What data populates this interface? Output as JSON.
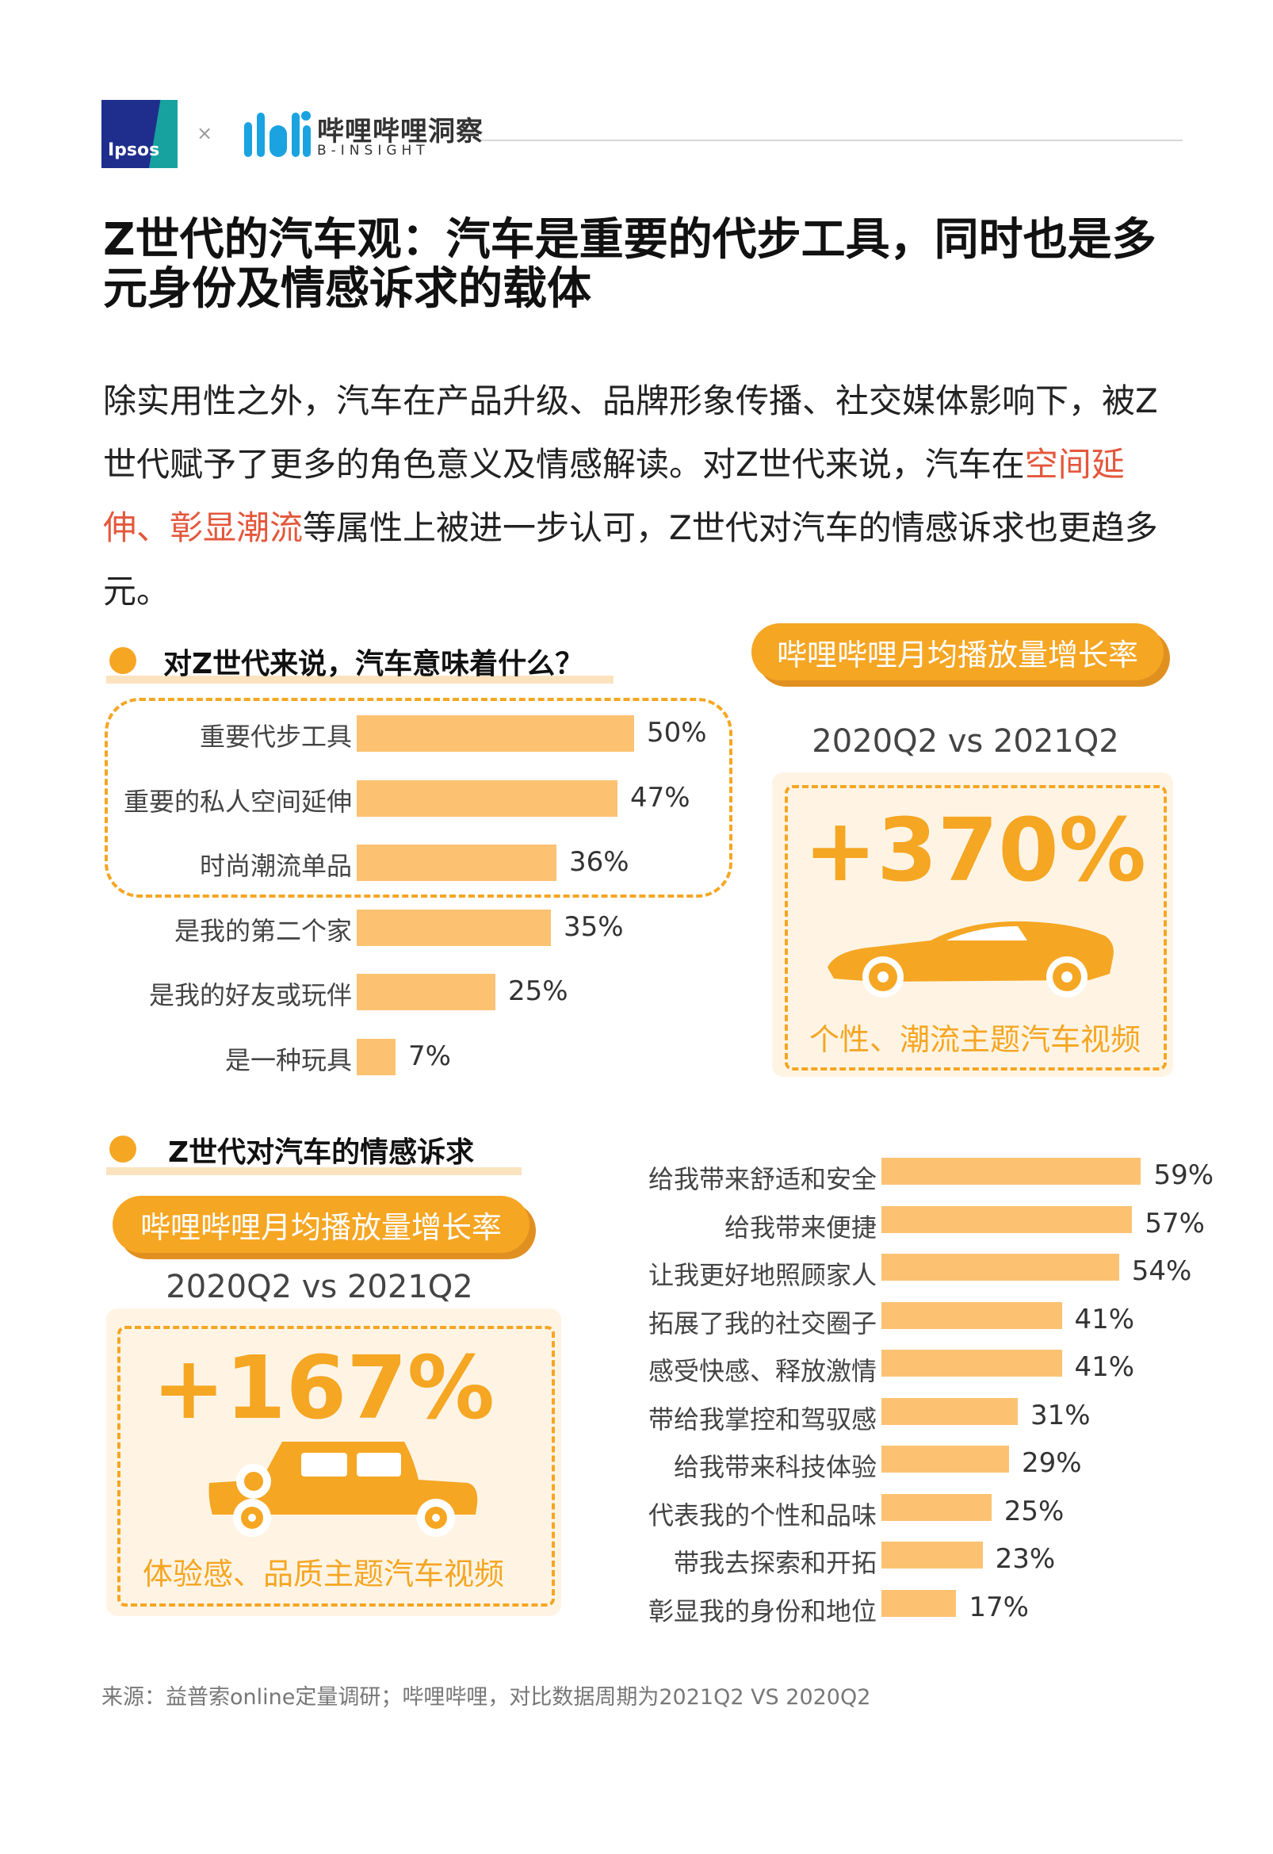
{
  "header": {
    "ipsos_logo_text": "Ipsos",
    "separator": "×",
    "bili_name": "哔哩哔哩洞察",
    "bili_sub": "B-INSIGHT"
  },
  "title": "Z世代的汽车观：汽车是重要的代步工具，同时也是多元身份及情感诉求的载体",
  "intro": {
    "part1": "除实用性之外，汽车在产品升级、品牌形象传播、社交媒体影响下，被Z世代赋予了更多的角色意义及情感解读。对Z世代来说，汽车在",
    "highlight": "空间延伸、彰显潮流",
    "part2": "等属性上被进一步认可，Z世代对汽车的情感诉求也更趋多元。"
  },
  "section1": {
    "title": "对Z世代来说，汽车意味着什么？"
  },
  "section2": {
    "title": "Z世代对汽车的情感诉求"
  },
  "stat1": {
    "pill": "哔哩哔哩月均播放量增长率",
    "period": "2020Q2 vs 2021Q2",
    "value": "+370%",
    "caption": "个性、潮流主题汽车视频",
    "icon": "sports-car-icon"
  },
  "stat2": {
    "pill": "哔哩哔哩月均播放量增长率",
    "period": "2020Q2 vs 2021Q2",
    "value": "+167%",
    "caption": "体验感、品质主题汽车视频",
    "icon": "classic-car-icon"
  },
  "chart_data": [
    {
      "type": "bar",
      "orientation": "horizontal",
      "categories": [
        "重要代步工具",
        "重要的私人空间延伸",
        "时尚潮流单品",
        "是我的第二个家",
        "是我的好友或玩伴",
        "是一种玩具"
      ],
      "values": [
        50,
        47,
        36,
        35,
        25,
        7
      ],
      "value_labels": [
        "50%",
        "47%",
        "36%",
        "35%",
        "25%",
        "7%"
      ],
      "highlighted": [
        0,
        1,
        2
      ],
      "color": "#fcc272"
    },
    {
      "type": "bar",
      "orientation": "horizontal",
      "categories": [
        "给我带来舒适和安全",
        "给我带来便捷",
        "让我更好地照顾家人",
        "拓展了我的社交圈子",
        "感受快感、释放激情",
        "带给我掌控和驾驭感",
        "给我带来科技体验",
        "代表我的个性和品味",
        "带我去探索和开拓",
        "彰显我的身份和地位"
      ],
      "values": [
        59,
        57,
        54,
        41,
        41,
        31,
        29,
        25,
        23,
        17
      ],
      "value_labels": [
        "59%",
        "57%",
        "54%",
        "41%",
        "41%",
        "31%",
        "29%",
        "25%",
        "23%",
        "17%"
      ],
      "color": "#fcc272"
    }
  ],
  "source": "来源：益普索online定量调研；哔哩哔哩，对比数据周期为2021Q2 VS 2020Q2",
  "colors": {
    "accent": "#f5a623",
    "bar": "#fcc272",
    "highlight_text": "#e4573c"
  }
}
